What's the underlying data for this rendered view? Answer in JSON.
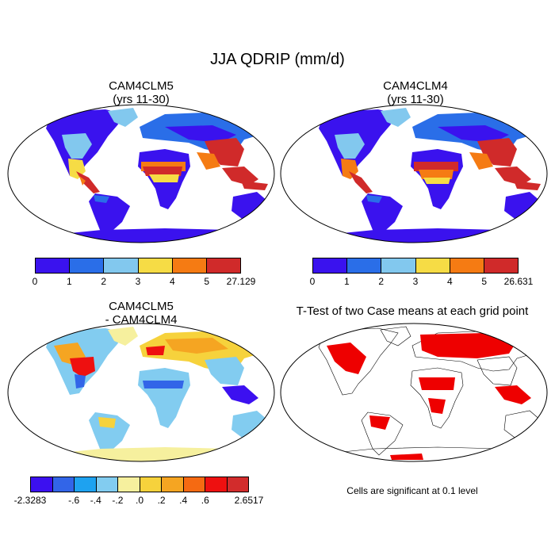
{
  "title": "JJA QDRIP (mm/d)",
  "panels": [
    {
      "id": "p1",
      "title_line1": "CAM4CLM5",
      "title_line2": "(yrs 11-30)"
    },
    {
      "id": "p2",
      "title_line1": "CAM4CLM4",
      "title_line2": "(yrs 11-30)"
    },
    {
      "id": "p3",
      "title_line1": "CAM4CLM5",
      "title_line2": "- CAM4CLM4"
    },
    {
      "id": "p4",
      "title_line1": "T-Test of two Case means at each grid point",
      "title_line2": ""
    }
  ],
  "colorbars": {
    "cb1": {
      "colors": [
        "#3a12ee",
        "#2a6ee8",
        "#82c8ee",
        "#f6dc45",
        "#f57b13",
        "#d02a2a"
      ],
      "labels": [
        "0",
        "1",
        "2",
        "3",
        "4",
        "5",
        "27.129"
      ]
    },
    "cb2": {
      "colors": [
        "#3a12ee",
        "#2a6ee8",
        "#82c8ee",
        "#f6dc45",
        "#f57b13",
        "#d02a2a"
      ],
      "labels": [
        "0",
        "1",
        "2",
        "3",
        "4",
        "5",
        "26.631"
      ]
    },
    "cb3": {
      "colors": [
        "#3c10f0",
        "#3265e8",
        "#1ea2f0",
        "#82ccf0",
        "#f6f09e",
        "#f6d23c",
        "#f5a522",
        "#f56a12",
        "#ee1010",
        "#d22c2c"
      ],
      "labels": [
        "-2.3283",
        "-.6",
        "-.4",
        "-.2",
        ".0",
        ".2",
        ".4",
        ".6",
        "2.6517"
      ]
    }
  },
  "note": "Cells are significant at 0.1 level",
  "map_colors": {
    "ocean": "#ffffff",
    "outline": "#000000",
    "significant": "#ee0000"
  }
}
